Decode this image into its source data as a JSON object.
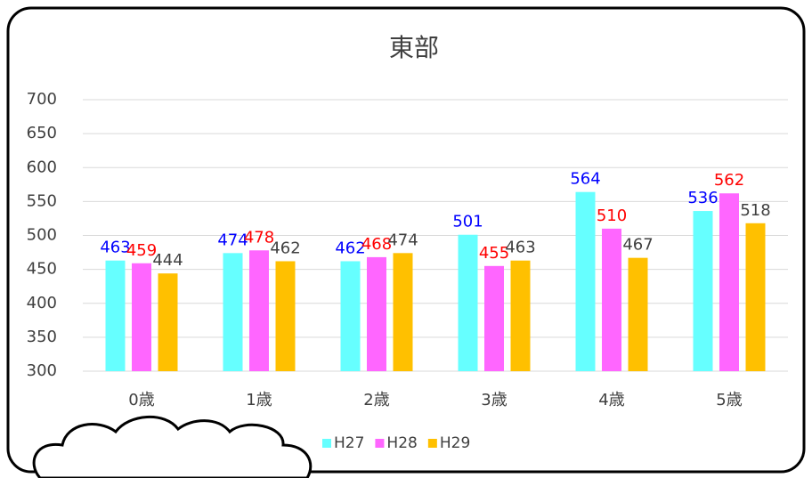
{
  "chart_data": {
    "type": "bar",
    "title": "東部",
    "categories": [
      "0歳",
      "1歳",
      "2歳",
      "3歳",
      "4歳",
      "5歳"
    ],
    "series": [
      {
        "name": "H27",
        "color": "#66ffff",
        "label_color": "#0000ff",
        "values": [
          463,
          474,
          462,
          501,
          564,
          536
        ]
      },
      {
        "name": "H28",
        "color": "#ff66ff",
        "label_color": "#ff0000",
        "values": [
          459,
          478,
          468,
          455,
          510,
          562
        ]
      },
      {
        "name": "H29",
        "color": "#ffc000",
        "label_color": "#404040",
        "values": [
          444,
          462,
          474,
          463,
          467,
          518
        ]
      }
    ],
    "ylim": [
      300,
      700
    ],
    "yticks": [
      300,
      350,
      400,
      450,
      500,
      550,
      600,
      650,
      700
    ],
    "grid": true,
    "legend": "bottom"
  }
}
